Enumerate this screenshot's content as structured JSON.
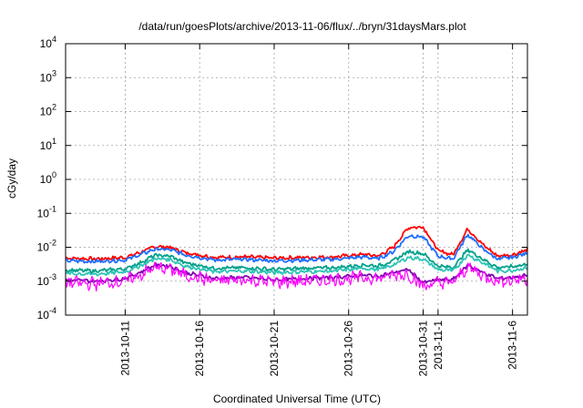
{
  "chart_data": {
    "type": "line",
    "title": "/data/run/goesPlots/archive/2013-11-06/flux/../bryn/31daysMars.plot",
    "xlabel": "Coordinated Universal Time (UTC)",
    "ylabel": "cGy/day",
    "y_scale": "log",
    "ylim": [
      0.0001,
      10000
    ],
    "y_ticks": [
      {
        "base": "10",
        "exp": "-4"
      },
      {
        "base": "10",
        "exp": "-3"
      },
      {
        "base": "10",
        "exp": "-2"
      },
      {
        "base": "10",
        "exp": "-1"
      },
      {
        "base": "10",
        "exp": "0"
      },
      {
        "base": "10",
        "exp": "1"
      },
      {
        "base": "10",
        "exp": "2"
      },
      {
        "base": "10",
        "exp": "3"
      },
      {
        "base": "10",
        "exp": "4"
      }
    ],
    "xlim": [
      "2013-10-07",
      "2013-11-07"
    ],
    "x_tick_labels": [
      "2013-10-11",
      "2013-10-16",
      "2013-10-21",
      "2013-10-26",
      "2013-10-31",
      "2013-11-1",
      "2013-11-6"
    ],
    "grid": true,
    "legend": "none",
    "series": [
      {
        "color": "#ff0000",
        "x": [
          "2013-10-07",
          "2013-10-09",
          "2013-10-11",
          "2013-10-12",
          "2013-10-13",
          "2013-10-14",
          "2013-10-15",
          "2013-10-17",
          "2013-10-19",
          "2013-10-21",
          "2013-10-23",
          "2013-10-25",
          "2013-10-27",
          "2013-10-28",
          "2013-10-29",
          "2013-10-30",
          "2013-10-31",
          "2013-11-01",
          "2013-11-02",
          "2013-11-03",
          "2013-11-04",
          "2013-11-05",
          "2013-11-06",
          "2013-11-07"
        ],
        "values": [
          0.0048,
          0.0045,
          0.005,
          0.007,
          0.0105,
          0.01,
          0.007,
          0.005,
          0.0052,
          0.0048,
          0.005,
          0.0052,
          0.0062,
          0.0055,
          0.01,
          0.038,
          0.04,
          0.008,
          0.006,
          0.035,
          0.012,
          0.0055,
          0.006,
          0.0085
        ]
      },
      {
        "color": "#1f6fff",
        "x": [
          "2013-10-07",
          "2013-10-09",
          "2013-10-11",
          "2013-10-12",
          "2013-10-13",
          "2013-10-14",
          "2013-10-15",
          "2013-10-17",
          "2013-10-19",
          "2013-10-21",
          "2013-10-23",
          "2013-10-25",
          "2013-10-27",
          "2013-10-28",
          "2013-10-29",
          "2013-10-30",
          "2013-10-31",
          "2013-11-01",
          "2013-11-02",
          "2013-11-03",
          "2013-11-04",
          "2013-11-05",
          "2013-11-06",
          "2013-11-07"
        ],
        "values": [
          0.004,
          0.0038,
          0.0042,
          0.006,
          0.0088,
          0.0085,
          0.006,
          0.0042,
          0.0044,
          0.004,
          0.0042,
          0.0044,
          0.0052,
          0.0046,
          0.0075,
          0.022,
          0.02,
          0.0055,
          0.0045,
          0.024,
          0.009,
          0.0045,
          0.005,
          0.0068
        ]
      },
      {
        "color": "#00a08a",
        "x": [
          "2013-10-07",
          "2013-10-09",
          "2013-10-11",
          "2013-10-12",
          "2013-10-13",
          "2013-10-14",
          "2013-10-15",
          "2013-10-17",
          "2013-10-19",
          "2013-10-21",
          "2013-10-23",
          "2013-10-25",
          "2013-10-27",
          "2013-10-28",
          "2013-10-29",
          "2013-10-30",
          "2013-10-31",
          "2013-11-01",
          "2013-11-02",
          "2013-11-03",
          "2013-11-04",
          "2013-11-05",
          "2013-11-06",
          "2013-11-07"
        ],
        "values": [
          0.0021,
          0.002,
          0.0023,
          0.0035,
          0.0058,
          0.0055,
          0.0035,
          0.0024,
          0.0025,
          0.0022,
          0.0024,
          0.0025,
          0.003,
          0.0028,
          0.004,
          0.0075,
          0.0065,
          0.0028,
          0.0025,
          0.0085,
          0.0045,
          0.0025,
          0.0027,
          0.0032
        ]
      },
      {
        "color": "#2ec4b6",
        "x": [
          "2013-10-07",
          "2013-10-09",
          "2013-10-11",
          "2013-10-12",
          "2013-10-13",
          "2013-10-14",
          "2013-10-15",
          "2013-10-17",
          "2013-10-19",
          "2013-10-21",
          "2013-10-23",
          "2013-10-25",
          "2013-10-27",
          "2013-10-28",
          "2013-10-29",
          "2013-10-30",
          "2013-10-31",
          "2013-11-01",
          "2013-11-02",
          "2013-11-03",
          "2013-11-04",
          "2013-11-05",
          "2013-11-06",
          "2013-11-07"
        ],
        "values": [
          0.0017,
          0.0016,
          0.0019,
          0.0028,
          0.0046,
          0.0044,
          0.0028,
          0.0019,
          0.002,
          0.0018,
          0.0019,
          0.002,
          0.0024,
          0.0022,
          0.003,
          0.005,
          0.0045,
          0.0022,
          0.002,
          0.006,
          0.0035,
          0.002,
          0.0021,
          0.0025
        ]
      },
      {
        "color": "#8000b0",
        "x": [
          "2013-10-07",
          "2013-10-09",
          "2013-10-11",
          "2013-10-12",
          "2013-10-13",
          "2013-10-14",
          "2013-10-15",
          "2013-10-17",
          "2013-10-19",
          "2013-10-21",
          "2013-10-23",
          "2013-10-25",
          "2013-10-27",
          "2013-10-28",
          "2013-10-29",
          "2013-10-30",
          "2013-10-31",
          "2013-11-01",
          "2013-11-02",
          "2013-11-03",
          "2013-11-04",
          "2013-11-05",
          "2013-11-06",
          "2013-11-07"
        ],
        "values": [
          0.0011,
          0.001,
          0.0012,
          0.0018,
          0.003,
          0.0028,
          0.0018,
          0.0012,
          0.0013,
          0.0011,
          0.0012,
          0.0013,
          0.0015,
          0.0014,
          0.0018,
          0.0022,
          0.0009,
          0.0011,
          0.0011,
          0.003,
          0.0018,
          0.0012,
          0.0013,
          0.0015
        ]
      },
      {
        "color": "#ff00ff",
        "x": [
          "2013-10-07",
          "2013-10-09",
          "2013-10-11",
          "2013-10-12",
          "2013-10-13",
          "2013-10-14",
          "2013-10-15",
          "2013-10-17",
          "2013-10-19",
          "2013-10-21",
          "2013-10-23",
          "2013-10-25",
          "2013-10-27",
          "2013-10-28",
          "2013-10-29",
          "2013-10-30",
          "2013-10-31",
          "2013-11-01",
          "2013-11-02",
          "2013-11-03",
          "2013-11-04",
          "2013-11-05",
          "2013-11-06",
          "2013-11-07"
        ],
        "values": [
          0.0009,
          0.00085,
          0.001,
          0.0015,
          0.0025,
          0.0023,
          0.0015,
          0.001,
          0.0011,
          0.00095,
          0.001,
          0.0011,
          0.0013,
          0.0012,
          0.0015,
          0.0016,
          0.0007,
          0.0009,
          0.0009,
          0.0026,
          0.0015,
          0.001,
          0.0011,
          0.0012
        ],
        "noisy": true
      }
    ]
  }
}
